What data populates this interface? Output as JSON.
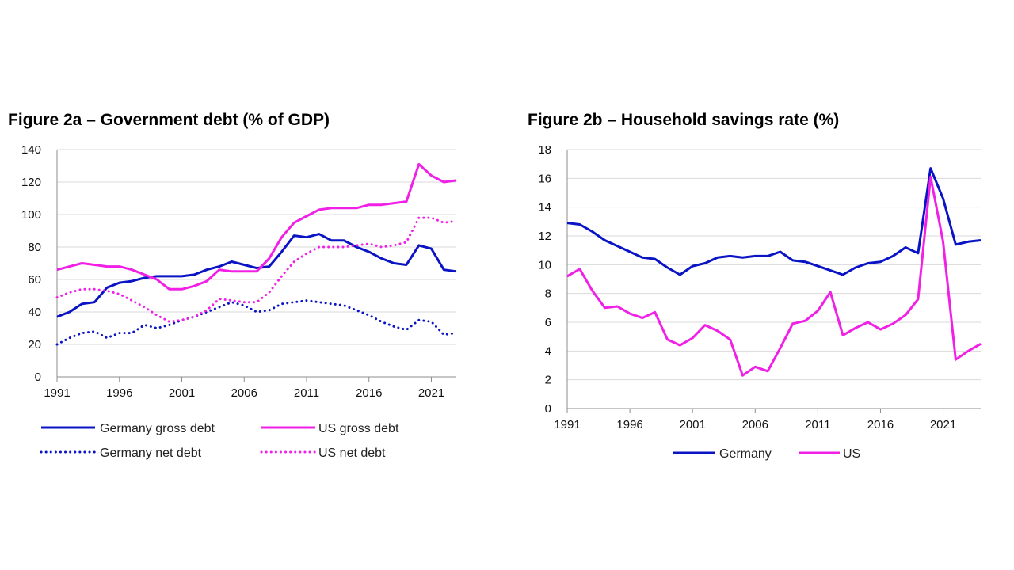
{
  "colors": {
    "germany": "#0a14c4",
    "us": "#f020e6",
    "grid": "#d9d9d9",
    "axis": "#8c8c8c"
  },
  "chart_data": [
    {
      "id": "fig2a",
      "type": "line",
      "title": "Figure 2a – Government debt (% of GDP)",
      "xlabel": "",
      "ylabel": "",
      "xlim": [
        1991,
        2023
      ],
      "ylim": [
        0,
        140
      ],
      "yticks": [
        0,
        20,
        40,
        60,
        80,
        100,
        120,
        140
      ],
      "xticks": [
        1991,
        1996,
        2001,
        2006,
        2011,
        2016,
        2021
      ],
      "grid": true,
      "legend": "bottom",
      "x": [
        1991,
        1992,
        1993,
        1994,
        1995,
        1996,
        1997,
        1998,
        1999,
        2000,
        2001,
        2002,
        2003,
        2004,
        2005,
        2006,
        2007,
        2008,
        2009,
        2010,
        2011,
        2012,
        2013,
        2014,
        2015,
        2016,
        2017,
        2018,
        2019,
        2020,
        2021,
        2022,
        2023
      ],
      "series": [
        {
          "name": "Germany gross debt",
          "color_key": "germany",
          "style": "solid",
          "values": [
            37,
            40,
            45,
            46,
            55,
            58,
            59,
            61,
            62,
            62,
            62,
            63,
            66,
            68,
            71,
            69,
            67,
            68,
            77,
            87,
            86,
            88,
            84,
            84,
            80,
            77,
            73,
            70,
            69,
            81,
            79,
            66,
            65
          ]
        },
        {
          "name": "US gross debt",
          "color_key": "us",
          "style": "solid",
          "values": [
            66,
            68,
            70,
            69,
            68,
            68,
            66,
            63,
            60,
            54,
            54,
            56,
            59,
            66,
            65,
            65,
            65,
            73,
            86,
            95,
            99,
            103,
            104,
            104,
            104,
            106,
            106,
            107,
            108,
            131,
            124,
            120,
            121
          ]
        },
        {
          "name": "Germany net debt",
          "color_key": "germany",
          "style": "dotted",
          "values": [
            20,
            24,
            27,
            28,
            24,
            27,
            27,
            32,
            30,
            32,
            35,
            37,
            40,
            43,
            46,
            44,
            40,
            41,
            45,
            46,
            47,
            46,
            45,
            44,
            41,
            38,
            34,
            31,
            29,
            35,
            34,
            26,
            27
          ]
        },
        {
          "name": "US net debt",
          "color_key": "us",
          "style": "dotted",
          "values": [
            49,
            52,
            54,
            54,
            53,
            51,
            47,
            43,
            38,
            34,
            35,
            37,
            41,
            48,
            47,
            46,
            46,
            52,
            62,
            71,
            76,
            80,
            80,
            80,
            81,
            82,
            80,
            81,
            83,
            98,
            98,
            95,
            96
          ]
        }
      ]
    },
    {
      "id": "fig2b",
      "type": "line",
      "title": "Figure 2b – Household savings rate (%)",
      "xlabel": "",
      "ylabel": "",
      "xlim": [
        1991,
        2024
      ],
      "ylim": [
        0,
        18
      ],
      "yticks": [
        0,
        2,
        4,
        6,
        8,
        10,
        12,
        14,
        16,
        18
      ],
      "xticks": [
        1991,
        1996,
        2001,
        2006,
        2011,
        2016,
        2021
      ],
      "grid": true,
      "legend": "bottom",
      "x": [
        1991,
        1992,
        1993,
        1994,
        1995,
        1996,
        1997,
        1998,
        1999,
        2000,
        2001,
        2002,
        2003,
        2004,
        2005,
        2006,
        2007,
        2008,
        2009,
        2010,
        2011,
        2012,
        2013,
        2014,
        2015,
        2016,
        2017,
        2018,
        2019,
        2020,
        2021,
        2022,
        2023,
        2024
      ],
      "series": [
        {
          "name": "Germany",
          "color_key": "germany",
          "style": "solid",
          "values": [
            12.9,
            12.8,
            12.3,
            11.7,
            11.3,
            10.9,
            10.5,
            10.4,
            9.8,
            9.3,
            9.9,
            10.1,
            10.5,
            10.6,
            10.5,
            10.6,
            10.6,
            10.9,
            10.3,
            10.2,
            9.9,
            9.6,
            9.3,
            9.8,
            10.1,
            10.2,
            10.6,
            11.2,
            10.8,
            16.7,
            14.6,
            11.4,
            11.6,
            11.7
          ]
        },
        {
          "name": "US",
          "color_key": "us",
          "style": "solid",
          "values": [
            9.2,
            9.7,
            8.2,
            7.0,
            7.1,
            6.6,
            6.3,
            6.7,
            4.8,
            4.4,
            4.9,
            5.8,
            5.4,
            4.8,
            2.3,
            2.9,
            2.6,
            4.2,
            5.9,
            6.1,
            6.8,
            8.1,
            5.1,
            5.6,
            6.0,
            5.5,
            5.9,
            6.5,
            7.6,
            16.1,
            11.6,
            3.4,
            4.0,
            4.5
          ]
        }
      ]
    }
  ]
}
